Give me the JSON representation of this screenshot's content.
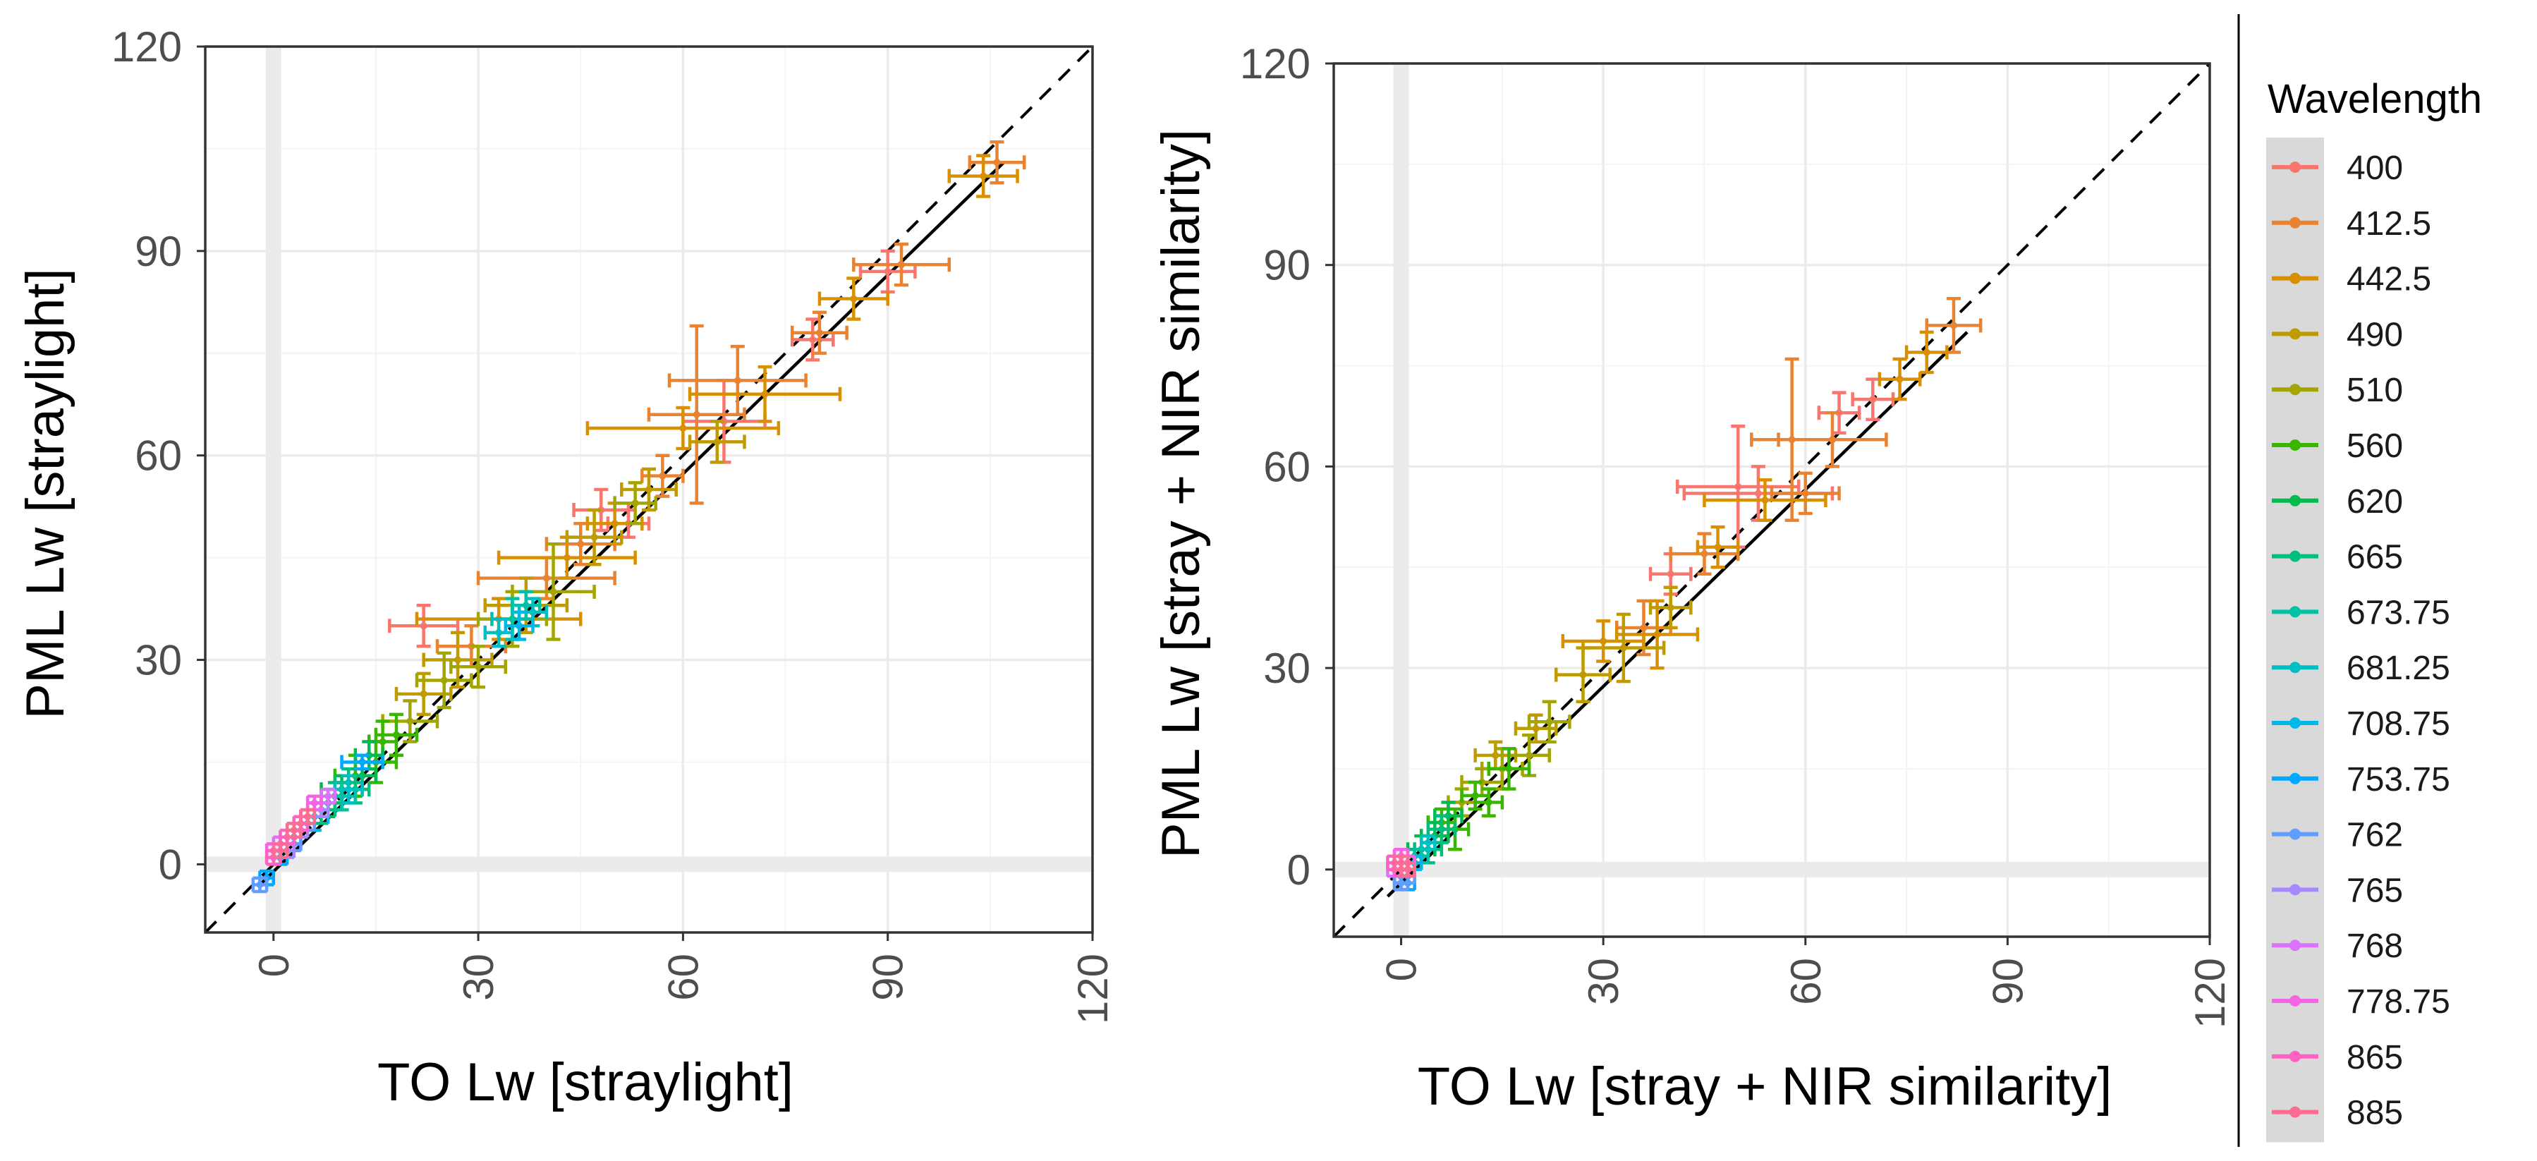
{
  "chart_data": [
    {
      "type": "scatter",
      "xlabel": "TO Lw [straylight]",
      "ylabel": "PML Lw [straylight]",
      "xlim": [
        -10,
        120
      ],
      "ylim": [
        -10,
        120
      ],
      "x_ticks": [
        0,
        30,
        60,
        90,
        120
      ],
      "y_ticks": [
        0,
        30,
        60,
        90,
        120
      ],
      "grid": true,
      "reference_lines": {
        "identity": "dashed 1:1",
        "fit": [
          [
            -2,
            -3
          ],
          [
            107,
            103
          ]
        ]
      },
      "series": [
        {
          "name": "400",
          "points": [
            [
              22,
              35,
              5,
              3
            ],
            [
              66,
              65,
              6,
              6
            ],
            [
              48,
              52,
              4,
              3
            ],
            [
              79,
              77,
              3,
              3
            ],
            [
              90,
              87,
              4,
              3
            ],
            [
              52,
              50,
              3,
              2
            ]
          ]
        },
        {
          "name": "412.5",
          "points": [
            [
              62,
              66,
              7,
              13
            ],
            [
              68,
              71,
              10,
              5
            ],
            [
              106,
              103,
              4,
              3
            ],
            [
              92,
              88,
              7,
              3
            ],
            [
              40,
              42,
              10,
              3
            ],
            [
              29,
              32,
              5,
              3
            ],
            [
              80,
              78,
              4,
              3
            ],
            [
              57,
              57,
              3,
              3
            ],
            [
              45,
              47,
              5,
              3
            ]
          ]
        },
        {
          "name": "442.5",
          "points": [
            [
              60,
              64,
              14,
              3
            ],
            [
              72,
              69,
              11,
              4
            ],
            [
              43,
              45,
              10,
              3
            ],
            [
              33,
              36,
              12,
              3
            ],
            [
              85,
              83,
              5,
              3
            ],
            [
              104,
              101,
              5,
              3
            ],
            [
              50,
              50,
              4,
              3
            ]
          ]
        },
        {
          "name": "490",
          "points": [
            [
              27,
              30,
              5,
              4
            ],
            [
              37,
              38,
              6,
              4
            ],
            [
              22,
              25,
              4,
              3
            ],
            [
              55,
              55,
              4,
              3
            ],
            [
              47,
              48,
              4,
              4
            ],
            [
              65,
              62,
              4,
              3
            ]
          ]
        },
        {
          "name": "510",
          "points": [
            [
              25,
              27,
              4,
              4
            ],
            [
              41,
              40,
              6,
              7
            ],
            [
              35,
              36,
              5,
              4
            ],
            [
              30,
              29,
              4,
              3
            ],
            [
              20,
              21,
              4,
              3
            ],
            [
              53,
              53,
              3,
              3
            ]
          ]
        },
        {
          "name": "560",
          "points": [
            [
              15,
              15,
              3,
              3
            ],
            [
              12,
              13,
              3,
              3
            ],
            [
              16,
              18,
              2,
              3
            ],
            [
              18,
              19,
              3,
              3
            ],
            [
              10,
              10,
              2,
              2
            ]
          ]
        },
        {
          "name": "620",
          "points": [
            [
              13,
              13,
              2,
              2
            ],
            [
              10,
              11,
              3,
              2
            ],
            [
              14,
              16,
              2,
              2
            ],
            [
              8,
              9,
              2,
              2
            ]
          ]
        },
        {
          "name": "665",
          "points": [
            [
              11,
              12,
              2,
              2
            ],
            [
              9,
              10,
              2,
              2
            ],
            [
              12,
              11,
              2,
              2
            ],
            [
              7,
              8,
              2,
              2
            ]
          ]
        },
        {
          "name": "673.75",
          "points": [
            [
              35,
              36,
              3,
              3
            ],
            [
              37,
              38,
              2,
              2
            ],
            [
              10,
              10,
              2,
              2
            ]
          ]
        },
        {
          "name": "681.25",
          "points": [
            [
              38,
              37,
              2,
              2
            ],
            [
              33,
              34,
              2,
              2
            ],
            [
              11,
              11,
              2,
              2
            ]
          ]
        },
        {
          "name": "708.75",
          "points": [
            [
              36,
              35,
              2,
              2
            ],
            [
              6,
              7,
              2,
              2
            ],
            [
              3,
              4,
              1,
              1
            ]
          ]
        },
        {
          "name": "753.75",
          "points": [
            [
              13,
              15,
              3,
              1
            ],
            [
              1,
              1,
              1,
              1
            ],
            [
              -1,
              -2,
              1,
              1
            ]
          ]
        },
        {
          "name": "762",
          "points": [
            [
              5,
              6,
              1,
              1
            ],
            [
              3,
              3,
              1,
              1
            ],
            [
              -2,
              -3,
              1,
              1
            ]
          ]
        },
        {
          "name": "765",
          "points": [
            [
              7,
              8,
              1,
              1
            ],
            [
              4,
              5,
              1,
              1
            ],
            [
              2,
              2,
              1,
              1
            ]
          ]
        },
        {
          "name": "768",
          "points": [
            [
              8,
              10,
              1,
              1
            ],
            [
              5,
              7,
              1,
              1
            ],
            [
              1,
              3,
              1,
              1
            ]
          ]
        },
        {
          "name": "778.75",
          "points": [
            [
              6,
              9,
              1,
              1
            ],
            [
              3,
              5,
              1,
              1
            ],
            [
              0,
              2,
              1,
              1
            ]
          ]
        },
        {
          "name": "865",
          "points": [
            [
              2,
              4,
              1,
              1
            ],
            [
              0,
              1,
              1,
              1
            ],
            [
              4,
              6,
              1,
              1
            ]
          ]
        },
        {
          "name": "885",
          "points": [
            [
              3,
              5,
              1,
              1
            ],
            [
              1,
              2,
              1,
              1
            ],
            [
              5,
              7,
              1,
              1
            ]
          ]
        }
      ]
    },
    {
      "type": "scatter",
      "xlabel": "TO Lw [stray + NIR similarity]",
      "ylabel": "PML Lw [stray + NIR similarity]",
      "xlim": [
        -10,
        120
      ],
      "ylim": [
        -10,
        120
      ],
      "x_ticks": [
        0,
        30,
        60,
        90,
        120
      ],
      "y_ticks": [
        0,
        30,
        60,
        90,
        120
      ],
      "grid": true,
      "reference_lines": {
        "identity": "dashed 1:1",
        "fit": [
          [
            -2,
            -4
          ],
          [
            84,
            80
          ]
        ]
      },
      "series": [
        {
          "name": "400",
          "points": [
            [
              50,
              57,
              9,
              9
            ],
            [
              53,
              56,
              11,
              4
            ],
            [
              65,
              68,
              3,
              3
            ],
            [
              40,
              44,
              3,
              3
            ],
            [
              70,
              70,
              3,
              3
            ]
          ]
        },
        {
          "name": "412.5",
          "points": [
            [
              58,
              64,
              6,
              12
            ],
            [
              64,
              64,
              8,
              4
            ],
            [
              82,
              81,
              4,
              4
            ],
            [
              45,
              47,
              5,
              3
            ],
            [
              36,
              36,
              4,
              4
            ],
            [
              60,
              56,
              5,
              3
            ]
          ]
        },
        {
          "name": "442.5",
          "points": [
            [
              54,
              55,
              9,
              3
            ],
            [
              38,
              35,
              6,
              5
            ],
            [
              30,
              34,
              6,
              3
            ],
            [
              74,
              73,
              3,
              3
            ],
            [
              47,
              48,
              3,
              3
            ],
            [
              78,
              77,
              3,
              3
            ]
          ]
        },
        {
          "name": "490",
          "points": [
            [
              33,
              33,
              6,
              5
            ],
            [
              20,
              21,
              3,
              2
            ],
            [
              27,
              29,
              4,
              4
            ],
            [
              14,
              17,
              3,
              2
            ],
            [
              40,
              39,
              3,
              3
            ]
          ]
        },
        {
          "name": "510",
          "points": [
            [
              19,
              17,
              3,
              3
            ],
            [
              15,
              15,
              3,
              3
            ],
            [
              22,
              22,
              3,
              3
            ],
            [
              12,
              13,
              3,
              2
            ],
            [
              9,
              10,
              2,
              2
            ]
          ]
        },
        {
          "name": "560",
          "points": [
            [
              11,
              11,
              2,
              2
            ],
            [
              8,
              6,
              2,
              3
            ],
            [
              13,
              10,
              2,
              2
            ],
            [
              6,
              7,
              2,
              2
            ],
            [
              16,
              15,
              3,
              3
            ]
          ]
        },
        {
          "name": "620",
          "points": [
            [
              5,
              5,
              2,
              2
            ],
            [
              7,
              8,
              2,
              2
            ],
            [
              3,
              3,
              2,
              2
            ]
          ]
        },
        {
          "name": "665",
          "points": [
            [
              4,
              3,
              2,
              2
            ],
            [
              6,
              6,
              2,
              2
            ],
            [
              2,
              2,
              1,
              1
            ]
          ]
        },
        {
          "name": "673.75",
          "points": [
            [
              3,
              2,
              1,
              1
            ],
            [
              1,
              1,
              1,
              1
            ]
          ]
        },
        {
          "name": "681.25",
          "points": [
            [
              2,
              1,
              1,
              1
            ],
            [
              4,
              4,
              1,
              1
            ]
          ]
        },
        {
          "name": "708.75",
          "points": [
            [
              1,
              0,
              1,
              1
            ],
            [
              2,
              1,
              1,
              1
            ]
          ]
        },
        {
          "name": "753.75",
          "points": [
            [
              0,
              -1,
              1,
              1
            ],
            [
              1,
              -2,
              1,
              1
            ]
          ]
        },
        {
          "name": "762",
          "points": [
            [
              1,
              -1,
              1,
              1
            ],
            [
              0,
              -2,
              1,
              1
            ]
          ]
        },
        {
          "name": "765",
          "points": [
            [
              0,
              0,
              1,
              1
            ],
            [
              1,
              1,
              1,
              1
            ]
          ]
        },
        {
          "name": "768",
          "points": [
            [
              0,
              1,
              1,
              1
            ],
            [
              -1,
              0,
              1,
              1
            ]
          ]
        },
        {
          "name": "778.75",
          "points": [
            [
              0,
              2,
              1,
              1
            ],
            [
              1,
              1,
              1,
              1
            ]
          ]
        },
        {
          "name": "865",
          "points": [
            [
              -1,
              1,
              1,
              1
            ],
            [
              0,
              0,
              1,
              1
            ]
          ]
        },
        {
          "name": "885",
          "points": [
            [
              0,
              1,
              1,
              1
            ],
            [
              1,
              0,
              1,
              1
            ]
          ]
        }
      ]
    }
  ],
  "legend": {
    "title": "Wavelength",
    "items": [
      {
        "label": "400",
        "color": "#F8766D"
      },
      {
        "label": "412.5",
        "color": "#EA8331"
      },
      {
        "label": "442.5",
        "color": "#D89000"
      },
      {
        "label": "490",
        "color": "#C09B00"
      },
      {
        "label": "510",
        "color": "#A3A500"
      },
      {
        "label": "560",
        "color": "#39B600"
      },
      {
        "label": "620",
        "color": "#00BB4E"
      },
      {
        "label": "665",
        "color": "#00BF7D"
      },
      {
        "label": "673.75",
        "color": "#00C1A3"
      },
      {
        "label": "681.25",
        "color": "#00BFC4"
      },
      {
        "label": "708.75",
        "color": "#00B8E7"
      },
      {
        "label": "753.75",
        "color": "#00A9FF"
      },
      {
        "label": "762",
        "color": "#619CFF"
      },
      {
        "label": "765",
        "color": "#A58AFF"
      },
      {
        "label": "768",
        "color": "#DB72FB"
      },
      {
        "label": "778.75",
        "color": "#F564E3"
      },
      {
        "label": "865",
        "color": "#FF61C3"
      },
      {
        "label": "885",
        "color": "#FF6C91"
      }
    ]
  }
}
